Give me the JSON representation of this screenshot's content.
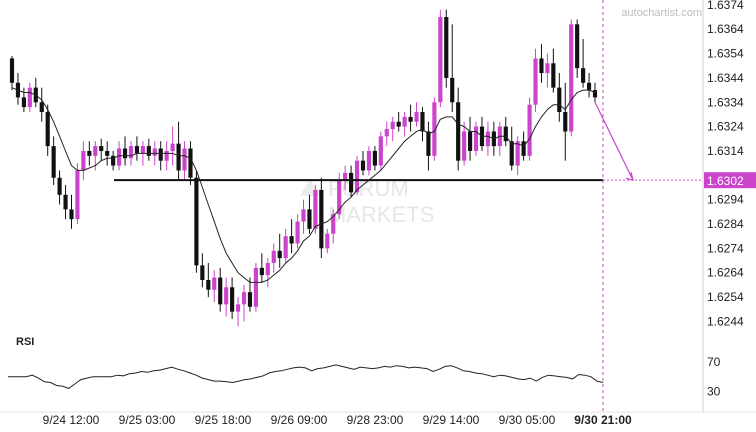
{
  "watermark": "autochartist.com",
  "logo": {
    "line1": "FORUM",
    "line2": "MARKETS"
  },
  "colors": {
    "bull": "#cc44cc",
    "bear": "#111111",
    "ma": "#222222",
    "level": "#111111",
    "forecast": "#cc44cc",
    "price_tag": "#cc44cc",
    "rsi": "#222222"
  },
  "chart_data": [
    {
      "type": "candlestick",
      "title": "",
      "x_tick_labels": [
        "9/24 12:00",
        "9/25 03:00",
        "9/25 18:00",
        "9/26 09:00",
        "9/28 23:00",
        "9/29 14:00",
        "9/30 05:00",
        "9/30 21:00"
      ],
      "y_ticks": [
        1.6244,
        1.6254,
        1.6264,
        1.6274,
        1.6284,
        1.6294,
        1.6314,
        1.6324,
        1.6334,
        1.6344,
        1.6354,
        1.6364,
        1.6374
      ],
      "ylim": [
        1.6238,
        1.6376
      ],
      "support_level": 1.6302,
      "price_label": "1.6302",
      "forecast": {
        "from": 1.6334,
        "to": 1.6302
      },
      "grid": false,
      "series": [
        {
          "values": [
            [
              1.6352,
              1.6353,
              1.6339,
              1.6342
            ],
            [
              1.6342,
              1.6346,
              1.6333,
              1.6336
            ],
            [
              1.6336,
              1.634,
              1.633,
              1.6332
            ],
            [
              1.6332,
              1.6342,
              1.633,
              1.634
            ],
            [
              1.634,
              1.6344,
              1.6332,
              1.6334
            ],
            [
              1.6334,
              1.634,
              1.6326,
              1.633
            ],
            [
              1.633,
              1.6333,
              1.6312,
              1.6316
            ],
            [
              1.6316,
              1.632,
              1.63,
              1.6303
            ],
            [
              1.6303,
              1.6306,
              1.6292,
              1.6296
            ],
            [
              1.6296,
              1.63,
              1.6286,
              1.629
            ],
            [
              1.629,
              1.6296,
              1.6282,
              1.6286
            ],
            [
              1.6286,
              1.6309,
              1.6284,
              1.6306
            ],
            [
              1.6306,
              1.6318,
              1.6302,
              1.6314
            ],
            [
              1.6314,
              1.6318,
              1.6308,
              1.6312
            ],
            [
              1.6312,
              1.6318,
              1.6306,
              1.6316
            ],
            [
              1.6316,
              1.6319,
              1.631,
              1.6314
            ],
            [
              1.6314,
              1.6318,
              1.6308,
              1.6312
            ],
            [
              1.6312,
              1.6314,
              1.6306,
              1.6308
            ],
            [
              1.6308,
              1.6318,
              1.6306,
              1.6315
            ],
            [
              1.6315,
              1.632,
              1.6308,
              1.6311
            ],
            [
              1.6311,
              1.6318,
              1.6308,
              1.6316
            ],
            [
              1.6316,
              1.632,
              1.631,
              1.6313
            ],
            [
              1.6313,
              1.6318,
              1.6308,
              1.6316
            ],
            [
              1.6316,
              1.6319,
              1.631,
              1.6312
            ],
            [
              1.6312,
              1.6318,
              1.6308,
              1.6315
            ],
            [
              1.6315,
              1.6318,
              1.6306,
              1.631
            ],
            [
              1.631,
              1.6318,
              1.6306,
              1.6314
            ],
            [
              1.6314,
              1.6324,
              1.6308,
              1.6317
            ],
            [
              1.6317,
              1.6326,
              1.6302,
              1.6306
            ],
            [
              1.6306,
              1.6318,
              1.6302,
              1.6315
            ],
            [
              1.6315,
              1.6318,
              1.63,
              1.6303
            ],
            [
              1.6303,
              1.6306,
              1.6264,
              1.6267
            ],
            [
              1.6267,
              1.6272,
              1.6258,
              1.6261
            ],
            [
              1.6261,
              1.6268,
              1.6254,
              1.6257
            ],
            [
              1.6257,
              1.6265,
              1.6252,
              1.6262
            ],
            [
              1.6262,
              1.6266,
              1.6248,
              1.6251
            ],
            [
              1.6251,
              1.6262,
              1.6246,
              1.6258
            ],
            [
              1.6258,
              1.6262,
              1.6245,
              1.6248
            ],
            [
              1.6248,
              1.6254,
              1.6242,
              1.6251
            ],
            [
              1.6251,
              1.6259,
              1.6244,
              1.6256
            ],
            [
              1.6256,
              1.6262,
              1.6248,
              1.625
            ],
            [
              1.625,
              1.6268,
              1.6248,
              1.6266
            ],
            [
              1.6266,
              1.6272,
              1.626,
              1.6263
            ],
            [
              1.6263,
              1.627,
              1.6258,
              1.6268
            ],
            [
              1.6268,
              1.6276,
              1.6264,
              1.6273
            ],
            [
              1.6273,
              1.628,
              1.6266,
              1.627
            ],
            [
              1.627,
              1.6282,
              1.6268,
              1.6279
            ],
            [
              1.6279,
              1.6286,
              1.6272,
              1.6276
            ],
            [
              1.6276,
              1.6288,
              1.6274,
              1.6285
            ],
            [
              1.6285,
              1.6294,
              1.628,
              1.629
            ],
            [
              1.629,
              1.6296,
              1.628,
              1.6282
            ],
            [
              1.6282,
              1.63,
              1.628,
              1.6298
            ],
            [
              1.6298,
              1.6303,
              1.627,
              1.6274
            ],
            [
              1.6274,
              1.6282,
              1.6272,
              1.628
            ],
            [
              1.628,
              1.629,
              1.6276,
              1.6288
            ],
            [
              1.6288,
              1.6305,
              1.6286,
              1.6302
            ],
            [
              1.6302,
              1.6308,
              1.6298,
              1.6305
            ],
            [
              1.6305,
              1.6308,
              1.6295,
              1.6297
            ],
            [
              1.6297,
              1.6312,
              1.6296,
              1.631
            ],
            [
              1.631,
              1.6314,
              1.6304,
              1.6306
            ],
            [
              1.6306,
              1.6316,
              1.6304,
              1.6314
            ],
            [
              1.6314,
              1.6316,
              1.6306,
              1.6308
            ],
            [
              1.6308,
              1.6322,
              1.6306,
              1.632
            ],
            [
              1.632,
              1.6326,
              1.6316,
              1.6323
            ],
            [
              1.6323,
              1.6328,
              1.6318,
              1.6326
            ],
            [
              1.6326,
              1.633,
              1.6322,
              1.6324
            ],
            [
              1.6324,
              1.633,
              1.632,
              1.6328
            ],
            [
              1.6328,
              1.6333,
              1.6322,
              1.6326
            ],
            [
              1.6326,
              1.6334,
              1.6324,
              1.633
            ],
            [
              1.633,
              1.6332,
              1.6318,
              1.6322
            ],
            [
              1.6322,
              1.6326,
              1.6306,
              1.6312
            ],
            [
              1.6312,
              1.6336,
              1.631,
              1.6334
            ],
            [
              1.6334,
              1.6372,
              1.6332,
              1.6369
            ],
            [
              1.6369,
              1.6372,
              1.634,
              1.6344
            ],
            [
              1.6344,
              1.6366,
              1.633,
              1.6334
            ],
            [
              1.6334,
              1.634,
              1.6306,
              1.631
            ],
            [
              1.631,
              1.6326,
              1.6308,
              1.6322
            ],
            [
              1.6322,
              1.6328,
              1.631,
              1.6314
            ],
            [
              1.6314,
              1.6326,
              1.6312,
              1.6324
            ],
            [
              1.6324,
              1.6328,
              1.6314,
              1.6316
            ],
            [
              1.6316,
              1.6326,
              1.6312,
              1.6322
            ],
            [
              1.6322,
              1.6326,
              1.6312,
              1.6316
            ],
            [
              1.6316,
              1.6326,
              1.6312,
              1.6324
            ],
            [
              1.6324,
              1.6328,
              1.6316,
              1.6318
            ],
            [
              1.6318,
              1.6324,
              1.6306,
              1.6308
            ],
            [
              1.6308,
              1.632,
              1.6304,
              1.6318
            ],
            [
              1.6318,
              1.6322,
              1.631,
              1.6312
            ],
            [
              1.6312,
              1.6336,
              1.631,
              1.6333
            ],
            [
              1.6333,
              1.6356,
              1.633,
              1.6352
            ],
            [
              1.6352,
              1.6358,
              1.6342,
              1.6346
            ],
            [
              1.6346,
              1.6354,
              1.634,
              1.635
            ],
            [
              1.635,
              1.6356,
              1.6338,
              1.634
            ],
            [
              1.634,
              1.6346,
              1.6326,
              1.633
            ],
            [
              1.633,
              1.6342,
              1.631,
              1.6322
            ],
            [
              1.6322,
              1.6368,
              1.632,
              1.6366
            ],
            [
              1.6366,
              1.6368,
              1.6344,
              1.6348
            ],
            [
              1.6348,
              1.636,
              1.634,
              1.6342
            ],
            [
              1.6342,
              1.6346,
              1.6336,
              1.6339
            ],
            [
              1.6339,
              1.6342,
              1.6334,
              1.6336
            ]
          ]
        },
        {
          "name": "MA",
          "values": [
            1.634,
            1.6339,
            1.6338,
            1.6338,
            1.6337,
            1.6335,
            1.6331,
            1.6326,
            1.632,
            1.6314,
            1.6308,
            1.6306,
            1.6306,
            1.6307,
            1.6308,
            1.631,
            1.6311,
            1.6311,
            1.6312,
            1.6312,
            1.6312,
            1.6313,
            1.6313,
            1.6313,
            1.6313,
            1.6313,
            1.6313,
            1.6313,
            1.6312,
            1.6312,
            1.6311,
            1.6306,
            1.6299,
            1.6292,
            1.6285,
            1.6278,
            1.6272,
            1.6268,
            1.6264,
            1.6262,
            1.626,
            1.626,
            1.626,
            1.6261,
            1.6263,
            1.6265,
            1.6268,
            1.627,
            1.6273,
            1.6277,
            1.6279,
            1.6283,
            1.6284,
            1.6285,
            1.6287,
            1.629,
            1.6293,
            1.6295,
            1.6298,
            1.63,
            1.6302,
            1.6304,
            1.6306,
            1.6309,
            1.6312,
            1.6315,
            1.6318,
            1.632,
            1.6322,
            1.6323,
            1.6321,
            1.6322,
            1.6327,
            1.6328,
            1.6328,
            1.6325,
            1.6324,
            1.6322,
            1.6322,
            1.632,
            1.632,
            1.6319,
            1.632,
            1.632,
            1.6317,
            1.6317,
            1.6316,
            1.6319,
            1.6324,
            1.6328,
            1.6331,
            1.6333,
            1.6333,
            1.6331,
            1.6335,
            1.6338,
            1.6339,
            1.6339,
            1.6338
          ]
        }
      ]
    },
    {
      "type": "line",
      "title": "RSI",
      "y_ticks": [
        30,
        70
      ],
      "ylim": [
        10,
        100
      ],
      "grid": false,
      "series": [
        {
          "values": [
            50,
            50,
            50,
            50,
            52,
            48,
            43,
            42,
            38,
            37,
            34,
            40,
            46,
            48,
            50,
            50,
            50,
            50,
            52,
            51,
            54,
            55,
            57,
            56,
            58,
            59,
            61,
            63,
            60,
            58,
            55,
            52,
            48,
            46,
            44,
            44,
            43,
            42,
            44,
            46,
            47,
            49,
            51,
            55,
            57,
            58,
            60,
            62,
            63,
            62,
            58,
            61,
            62,
            64,
            66,
            64,
            62,
            60,
            63,
            62,
            61,
            62,
            64,
            63,
            65,
            64,
            62,
            63,
            62,
            61,
            57,
            60,
            64,
            65,
            62,
            58,
            57,
            55,
            54,
            52,
            50,
            52,
            51,
            49,
            47,
            46,
            48,
            44,
            49,
            52,
            51,
            50,
            49,
            47,
            53,
            52,
            50,
            44,
            42
          ]
        }
      ]
    }
  ]
}
